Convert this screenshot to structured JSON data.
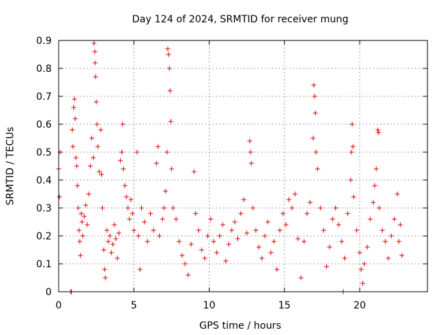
{
  "chart_data": {
    "type": "scatter",
    "title": "Day 124 of 2024, SRMTID for receiver mung",
    "xlabel": "GPS time / hours",
    "ylabel": "SRMTID / TECUs",
    "xlim": [
      0,
      24.5
    ],
    "ylim": [
      0,
      0.9
    ],
    "x_ticks": [
      0,
      5,
      10,
      15,
      20
    ],
    "x_tick_labels": [
      "0",
      "5",
      "10",
      "15",
      "20"
    ],
    "y_ticks": [
      0,
      0.1,
      0.2,
      0.3,
      0.4,
      0.5,
      0.6,
      0.7,
      0.8,
      0.9
    ],
    "y_tick_labels": [
      "0",
      "0.1",
      "0.2",
      "0.3",
      "0.4",
      "0.5",
      "0.6",
      "0.7",
      "0.8",
      "0.9"
    ],
    "grid": true,
    "marker": "+",
    "color": "#e00000",
    "series": [
      {
        "name": "SRMTID",
        "points": [
          [
            0.0,
            0.44
          ],
          [
            0.05,
            0.34
          ],
          [
            0.1,
            0.5
          ],
          [
            0.8,
            0.0
          ],
          [
            0.85,
            0.0
          ],
          [
            0.9,
            0.58
          ],
          [
            0.95,
            0.52
          ],
          [
            1.0,
            0.66
          ],
          [
            1.05,
            0.69
          ],
          [
            1.1,
            0.62
          ],
          [
            1.15,
            0.48
          ],
          [
            1.2,
            0.45
          ],
          [
            1.25,
            0.38
          ],
          [
            1.3,
            0.3
          ],
          [
            1.35,
            0.22
          ],
          [
            1.4,
            0.18
          ],
          [
            1.45,
            0.13
          ],
          [
            1.5,
            0.28
          ],
          [
            1.55,
            0.25
          ],
          [
            1.6,
            0.2
          ],
          [
            1.7,
            0.27
          ],
          [
            1.8,
            0.31
          ],
          [
            1.9,
            0.24
          ],
          [
            2.0,
            0.35
          ],
          [
            2.1,
            0.45
          ],
          [
            2.2,
            0.55
          ],
          [
            2.3,
            0.48
          ],
          [
            2.35,
            0.89
          ],
          [
            2.4,
            0.86
          ],
          [
            2.42,
            0.82
          ],
          [
            2.45,
            0.77
          ],
          [
            2.5,
            0.68
          ],
          [
            2.55,
            0.6
          ],
          [
            2.6,
            0.52
          ],
          [
            2.7,
            0.43
          ],
          [
            2.8,
            0.58
          ],
          [
            2.85,
            0.42
          ],
          [
            2.9,
            0.3
          ],
          [
            3.0,
            0.15
          ],
          [
            3.05,
            0.08
          ],
          [
            3.1,
            0.05
          ],
          [
            3.2,
            0.22
          ],
          [
            3.3,
            0.18
          ],
          [
            3.4,
            0.2
          ],
          [
            3.5,
            0.14
          ],
          [
            3.6,
            0.17
          ],
          [
            3.7,
            0.24
          ],
          [
            3.8,
            0.19
          ],
          [
            3.9,
            0.12
          ],
          [
            4.0,
            0.21
          ],
          [
            4.1,
            0.47
          ],
          [
            4.2,
            0.5
          ],
          [
            4.25,
            0.6
          ],
          [
            4.3,
            0.44
          ],
          [
            4.4,
            0.38
          ],
          [
            4.5,
            0.34
          ],
          [
            4.6,
            0.3
          ],
          [
            4.7,
            0.26
          ],
          [
            4.8,
            0.33
          ],
          [
            4.9,
            0.28
          ],
          [
            5.0,
            0.22
          ],
          [
            5.2,
            0.5
          ],
          [
            5.3,
            0.2
          ],
          [
            5.4,
            0.08
          ],
          [
            5.5,
            0.3
          ],
          [
            5.7,
            0.25
          ],
          [
            5.9,
            0.18
          ],
          [
            6.1,
            0.28
          ],
          [
            6.3,
            0.22
          ],
          [
            6.5,
            0.46
          ],
          [
            6.6,
            0.52
          ],
          [
            6.7,
            0.2
          ],
          [
            6.9,
            0.26
          ],
          [
            7.0,
            0.3
          ],
          [
            7.1,
            0.36
          ],
          [
            7.2,
            0.5
          ],
          [
            7.25,
            0.87
          ],
          [
            7.3,
            0.85
          ],
          [
            7.35,
            0.8
          ],
          [
            7.4,
            0.72
          ],
          [
            7.45,
            0.61
          ],
          [
            7.5,
            0.44
          ],
          [
            7.6,
            0.3
          ],
          [
            7.8,
            0.26
          ],
          [
            8.0,
            0.18
          ],
          [
            8.2,
            0.13
          ],
          [
            8.4,
            0.1
          ],
          [
            8.6,
            0.06
          ],
          [
            8.8,
            0.17
          ],
          [
            9.0,
            0.43
          ],
          [
            9.1,
            0.28
          ],
          [
            9.3,
            0.22
          ],
          [
            9.5,
            0.15
          ],
          [
            9.7,
            0.12
          ],
          [
            9.9,
            0.2
          ],
          [
            10.1,
            0.26
          ],
          [
            10.3,
            0.18
          ],
          [
            10.5,
            0.14
          ],
          [
            10.7,
            0.2
          ],
          [
            10.9,
            0.24
          ],
          [
            11.1,
            0.11
          ],
          [
            11.3,
            0.17
          ],
          [
            11.5,
            0.22
          ],
          [
            11.7,
            0.25
          ],
          [
            11.9,
            0.19
          ],
          [
            12.1,
            0.28
          ],
          [
            12.3,
            0.33
          ],
          [
            12.5,
            0.21
          ],
          [
            12.7,
            0.54
          ],
          [
            12.75,
            0.5
          ],
          [
            12.8,
            0.46
          ],
          [
            12.9,
            0.3
          ],
          [
            13.1,
            0.22
          ],
          [
            13.3,
            0.16
          ],
          [
            13.5,
            0.12
          ],
          [
            13.7,
            0.2
          ],
          [
            13.9,
            0.25
          ],
          [
            14.1,
            0.14
          ],
          [
            14.3,
            0.18
          ],
          [
            14.5,
            0.08
          ],
          [
            14.7,
            0.22
          ],
          [
            14.9,
            0.28
          ],
          [
            15.1,
            0.24
          ],
          [
            15.3,
            0.33
          ],
          [
            15.5,
            0.3
          ],
          [
            15.7,
            0.35
          ],
          [
            15.9,
            0.19
          ],
          [
            16.1,
            0.05
          ],
          [
            16.3,
            0.18
          ],
          [
            16.5,
            0.28
          ],
          [
            16.7,
            0.32
          ],
          [
            16.9,
            0.55
          ],
          [
            16.95,
            0.74
          ],
          [
            17.0,
            0.7
          ],
          [
            17.05,
            0.64
          ],
          [
            17.1,
            0.5
          ],
          [
            17.2,
            0.44
          ],
          [
            17.4,
            0.3
          ],
          [
            17.6,
            0.22
          ],
          [
            17.8,
            0.09
          ],
          [
            18.0,
            0.16
          ],
          [
            18.2,
            0.26
          ],
          [
            18.4,
            0.3
          ],
          [
            18.6,
            0.24
          ],
          [
            18.8,
            0.18
          ],
          [
            18.9,
            0.0
          ],
          [
            19.0,
            0.12
          ],
          [
            19.2,
            0.28
          ],
          [
            19.4,
            0.4
          ],
          [
            19.45,
            0.5
          ],
          [
            19.5,
            0.6
          ],
          [
            19.55,
            0.52
          ],
          [
            19.6,
            0.34
          ],
          [
            19.8,
            0.22
          ],
          [
            20.0,
            0.14
          ],
          [
            20.1,
            0.08
          ],
          [
            20.2,
            0.03
          ],
          [
            20.3,
            0.1
          ],
          [
            20.5,
            0.16
          ],
          [
            20.7,
            0.26
          ],
          [
            20.9,
            0.32
          ],
          [
            21.0,
            0.38
          ],
          [
            21.1,
            0.44
          ],
          [
            21.2,
            0.58
          ],
          [
            21.25,
            0.57
          ],
          [
            21.3,
            0.3
          ],
          [
            21.5,
            0.22
          ],
          [
            21.7,
            0.18
          ],
          [
            21.9,
            0.12
          ],
          [
            22.1,
            0.2
          ],
          [
            22.3,
            0.26
          ],
          [
            22.5,
            0.35
          ],
          [
            22.6,
            0.18
          ],
          [
            22.7,
            0.24
          ],
          [
            22.8,
            0.13
          ]
        ]
      }
    ]
  }
}
